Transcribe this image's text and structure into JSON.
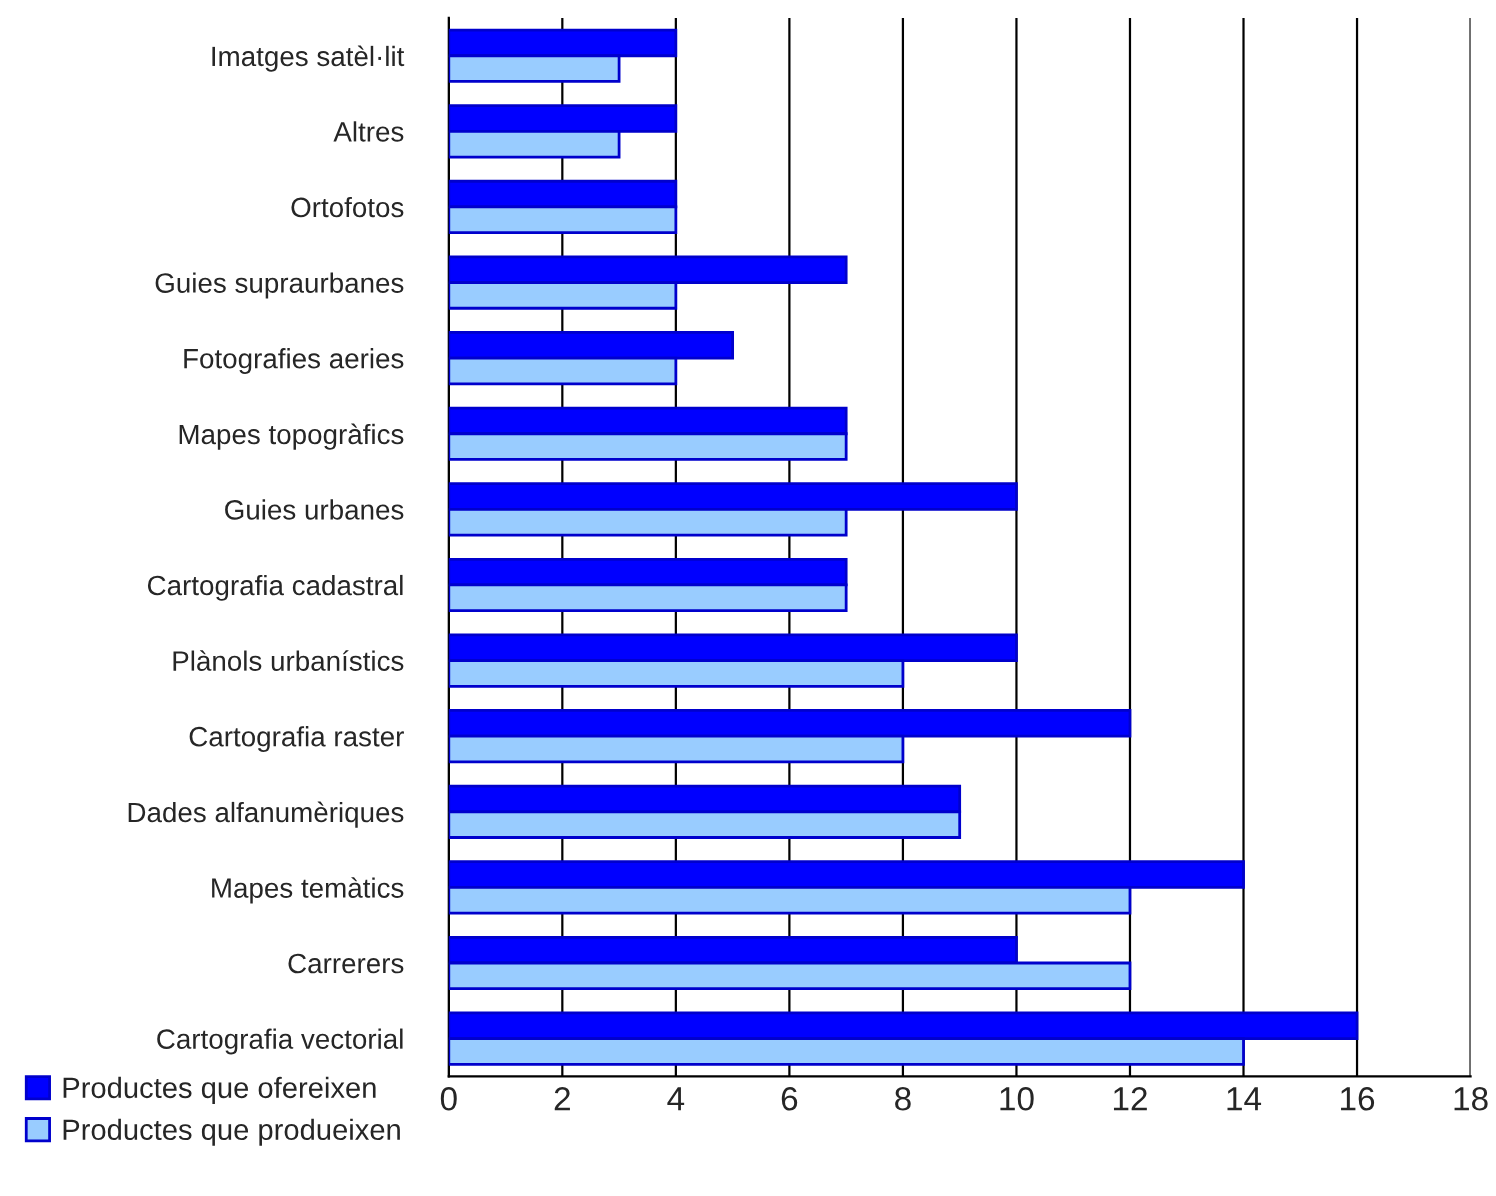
{
  "chart_data": {
    "type": "bar",
    "orientation": "horizontal",
    "categories": [
      "Imatges satèl·lit",
      "Altres",
      "Ortofotos",
      "Guies supraurbanes",
      "Fotografies aeries",
      "Mapes topogràfics",
      "Guies urbanes",
      "Cartografia cadastral",
      "Plànols urbanístics",
      "Cartografia raster",
      "Dades alfanumèriques",
      "Mapes temàtics",
      "Carrerers",
      "Cartografia vectorial"
    ],
    "series": [
      {
        "name": "Productes que ofereixen",
        "color": "#0000ff",
        "values": [
          4,
          4,
          4,
          7,
          5,
          7,
          10,
          7,
          10,
          12,
          9,
          14,
          10,
          16
        ]
      },
      {
        "name": "Productes que produeixen",
        "color": "#99ccff",
        "values": [
          3,
          3,
          4,
          4,
          4,
          7,
          7,
          7,
          8,
          8,
          9,
          12,
          12,
          14
        ]
      }
    ],
    "xlim": [
      0,
      18
    ],
    "xticks": [
      0,
      2,
      4,
      6,
      8,
      10,
      12,
      14,
      16,
      18
    ],
    "grid": "x",
    "legend": "bottom left"
  }
}
